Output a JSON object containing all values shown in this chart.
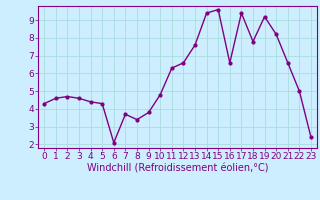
{
  "x": [
    0,
    1,
    2,
    3,
    4,
    5,
    6,
    7,
    8,
    9,
    10,
    11,
    12,
    13,
    14,
    15,
    16,
    17,
    18,
    19,
    20,
    21,
    22,
    23
  ],
  "y": [
    4.3,
    4.6,
    4.7,
    4.6,
    4.4,
    4.3,
    2.1,
    3.7,
    3.4,
    3.8,
    4.8,
    6.3,
    6.6,
    7.6,
    9.4,
    9.6,
    6.6,
    9.4,
    7.8,
    9.2,
    8.2,
    6.6,
    5.0,
    2.4
  ],
  "line_color": "#800080",
  "marker": ".",
  "marker_size": 4,
  "bg_color": "#cceeff",
  "grid_color": "#aadddd",
  "xlabel": "Windchill (Refroidissement éolien,°C)",
  "xlabel_color": "#800080",
  "tick_color": "#800080",
  "spine_color": "#800080",
  "ylim": [
    1.8,
    9.8
  ],
  "xlim": [
    -0.5,
    23.5
  ],
  "yticks": [
    2,
    3,
    4,
    5,
    6,
    7,
    8,
    9
  ],
  "xticks": [
    0,
    1,
    2,
    3,
    4,
    5,
    6,
    7,
    8,
    9,
    10,
    11,
    12,
    13,
    14,
    15,
    16,
    17,
    18,
    19,
    20,
    21,
    22,
    23
  ],
  "xlabel_fontsize": 7.0,
  "tick_fontsize": 6.5,
  "linewidth": 1.0
}
